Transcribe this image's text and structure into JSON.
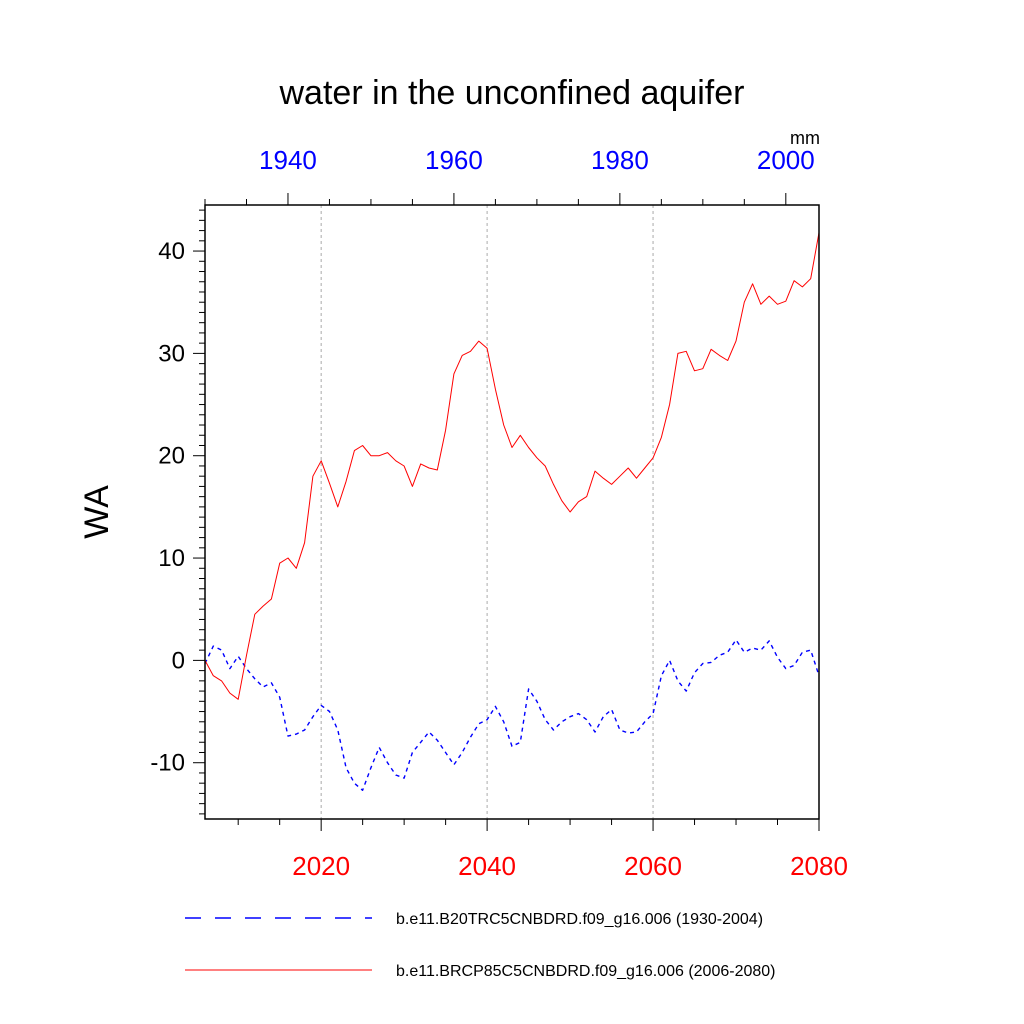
{
  "chart_data": {
    "type": "line",
    "title": "water in the unconfined aquifer",
    "units": "mm",
    "ylabel": "WA",
    "xlabel": "",
    "ylim": [
      -15.5,
      44.5
    ],
    "yticks": [
      -10,
      0,
      10,
      20,
      30,
      40
    ],
    "ytick_labels": [
      "-10",
      "0",
      "10",
      "20",
      "30",
      "40"
    ],
    "grid": "vertical-dotted",
    "legend_position": "bottom",
    "bottom_axis": {
      "range": [
        2006,
        2080
      ],
      "ticks": [
        2020,
        2040,
        2060,
        2080
      ],
      "tick_labels": [
        "2020",
        "2040",
        "2060",
        "2080"
      ],
      "color": "#ff0000"
    },
    "top_axis": {
      "range": [
        1930,
        2004
      ],
      "ticks": [
        1940,
        1960,
        1980,
        2000
      ],
      "tick_labels": [
        "1940",
        "1960",
        "1980",
        "2000"
      ],
      "color": "#0000ff"
    },
    "series": [
      {
        "name": "b.e11.B20TRC5CNBDRD.f09_g16.006 (1930-2004)",
        "color": "#0000ff",
        "style": "dashed",
        "axis": "top",
        "x": [
          1930,
          1931,
          1932,
          1933,
          1934,
          1935,
          1936,
          1937,
          1938,
          1939,
          1940,
          1941,
          1942,
          1943,
          1944,
          1945,
          1946,
          1947,
          1948,
          1949,
          1950,
          1951,
          1952,
          1953,
          1954,
          1955,
          1956,
          1957,
          1958,
          1959,
          1960,
          1961,
          1962,
          1963,
          1964,
          1965,
          1966,
          1967,
          1968,
          1969,
          1970,
          1971,
          1972,
          1973,
          1974,
          1975,
          1976,
          1977,
          1978,
          1979,
          1980,
          1981,
          1982,
          1983,
          1984,
          1985,
          1986,
          1987,
          1988,
          1989,
          1990,
          1991,
          1992,
          1993,
          1994,
          1995,
          1996,
          1997,
          1998,
          1999,
          2000,
          2001,
          2002,
          2003,
          2004
        ],
        "y": [
          -0.3,
          1.4,
          1.0,
          -0.8,
          0.4,
          -0.8,
          -1.8,
          -2.6,
          -2.2,
          -3.6,
          -7.4,
          -7.2,
          -6.8,
          -5.5,
          -4.4,
          -5.0,
          -6.8,
          -10.5,
          -12.0,
          -12.7,
          -10.5,
          -8.5,
          -10.0,
          -11.2,
          -11.5,
          -9.0,
          -8.0,
          -7.0,
          -7.8,
          -9.0,
          -10.2,
          -9.0,
          -7.5,
          -6.2,
          -5.8,
          -4.5,
          -6.0,
          -8.4,
          -8.0,
          -2.8,
          -4.0,
          -5.8,
          -6.8,
          -6.0,
          -5.5,
          -5.2,
          -5.8,
          -7.0,
          -5.5,
          -4.8,
          -6.8,
          -7.1,
          -7.0,
          -6.0,
          -5.2,
          -1.5,
          0.0,
          -2.0,
          -3.0,
          -1.2,
          -0.3,
          -0.2,
          0.5,
          0.8,
          2.0,
          0.8,
          1.2,
          1.0,
          1.9,
          0.3,
          -0.8,
          -0.5,
          0.8,
          1.0,
          -1.5
        ]
      },
      {
        "name": "b.e11.BRCP85C5CNBDRD.f09_g16.006 (2006-2080)",
        "color": "#ff0000",
        "style": "solid",
        "axis": "bottom",
        "x": [
          2006,
          2007,
          2008,
          2009,
          2010,
          2011,
          2012,
          2013,
          2014,
          2015,
          2016,
          2017,
          2018,
          2019,
          2020,
          2021,
          2022,
          2023,
          2024,
          2025,
          2026,
          2027,
          2028,
          2029,
          2030,
          2031,
          2032,
          2033,
          2034,
          2035,
          2036,
          2037,
          2038,
          2039,
          2040,
          2041,
          2042,
          2043,
          2044,
          2045,
          2046,
          2047,
          2048,
          2049,
          2050,
          2051,
          2052,
          2053,
          2054,
          2055,
          2056,
          2057,
          2058,
          2059,
          2060,
          2061,
          2062,
          2063,
          2064,
          2065,
          2066,
          2067,
          2068,
          2069,
          2070,
          2071,
          2072,
          2073,
          2074,
          2075,
          2076,
          2077,
          2078,
          2079,
          2080
        ],
        "y": [
          0.0,
          -1.5,
          -2.0,
          -3.2,
          -3.8,
          0.5,
          4.5,
          5.3,
          6.0,
          9.5,
          10.0,
          9.0,
          11.5,
          18.0,
          19.5,
          17.3,
          15.0,
          17.5,
          20.5,
          21.0,
          20.0,
          20.0,
          20.3,
          19.5,
          19.0,
          17.0,
          19.2,
          18.8,
          18.6,
          22.5,
          28.0,
          29.8,
          30.2,
          31.2,
          30.5,
          26.5,
          23.0,
          20.8,
          22.0,
          20.8,
          19.8,
          19.0,
          17.2,
          15.6,
          14.5,
          15.5,
          16.0,
          18.5,
          17.8,
          17.2,
          18.0,
          18.8,
          17.8,
          18.8,
          19.8,
          21.8,
          25.0,
          30.0,
          30.2,
          28.3,
          28.5,
          30.4,
          29.8,
          29.3,
          31.2,
          35.0,
          36.8,
          34.8,
          35.6,
          34.8,
          35.1,
          37.1,
          36.5,
          37.3,
          41.8
        ]
      }
    ]
  }
}
